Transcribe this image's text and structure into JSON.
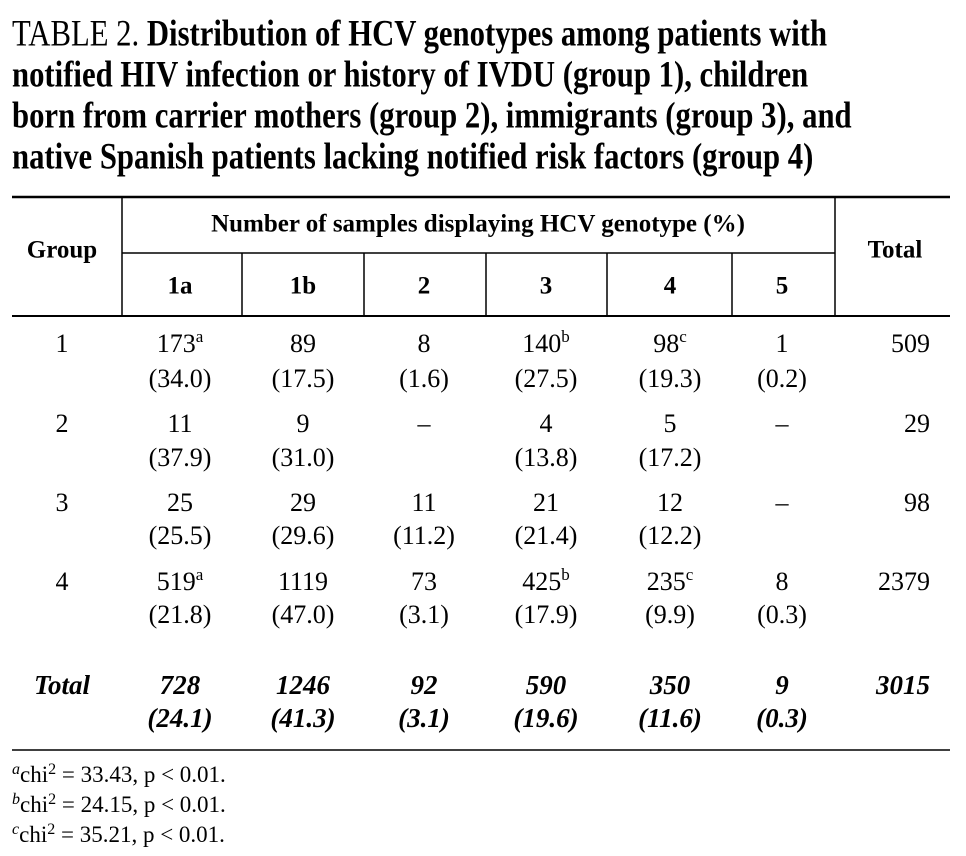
{
  "caption": {
    "label": "TABLE 2.",
    "lines": [
      "Distribution of HCV genotypes among patients with",
      "notified HIV infection or history of IVDU (group 1), children",
      "born from carrier mothers (group 2), immigrants (group 3), and",
      "native Spanish patients lacking notified risk factors (group 4)"
    ]
  },
  "table": {
    "header": {
      "group": "Group",
      "span": "Number of samples displaying HCV genotype (%)",
      "total": "Total",
      "genotypes": [
        "1a",
        "1b",
        "2",
        "3",
        "4",
        "5"
      ]
    },
    "rows": [
      {
        "group": "1",
        "cells": [
          {
            "n": "173",
            "sup": "a",
            "pct": "(34.0)"
          },
          {
            "n": "89",
            "pct": "(17.5)"
          },
          {
            "n": "8",
            "pct": "(1.6)"
          },
          {
            "n": "140",
            "sup": "b",
            "pct": "(27.5)"
          },
          {
            "n": "98",
            "sup": "c",
            "pct": "(19.3)"
          },
          {
            "n": "1",
            "pct": "(0.2)"
          }
        ],
        "total": "509"
      },
      {
        "group": "2",
        "cells": [
          {
            "n": "11",
            "pct": "(37.9)"
          },
          {
            "n": "9",
            "pct": "(31.0)"
          },
          {
            "n": "–"
          },
          {
            "n": "4",
            "pct": "(13.8)"
          },
          {
            "n": "5",
            "pct": "(17.2)"
          },
          {
            "n": "–"
          }
        ],
        "total": "29"
      },
      {
        "group": "3",
        "cells": [
          {
            "n": "25",
            "pct": "(25.5)"
          },
          {
            "n": "29",
            "pct": "(29.6)"
          },
          {
            "n": "11",
            "pct": "(11.2)"
          },
          {
            "n": "21",
            "pct": "(21.4)"
          },
          {
            "n": "12",
            "pct": "(12.2)"
          },
          {
            "n": "–"
          }
        ],
        "total": "98"
      },
      {
        "group": "4",
        "cells": [
          {
            "n": "519",
            "sup": "a",
            "pct": "(21.8)"
          },
          {
            "n": "1119",
            "pct": "(47.0)"
          },
          {
            "n": "73",
            "pct": "(3.1)"
          },
          {
            "n": "425",
            "sup": "b",
            "pct": "(17.9)"
          },
          {
            "n": "235",
            "sup": "c",
            "pct": "(9.9)"
          },
          {
            "n": "8",
            "pct": "(0.3)"
          }
        ],
        "total": "2379"
      }
    ],
    "total_row": {
      "group": "Total",
      "cells": [
        {
          "n": "728",
          "pct": "(24.1)"
        },
        {
          "n": "1246",
          "pct": "(41.3)"
        },
        {
          "n": "92",
          "pct": "(3.1)"
        },
        {
          "n": "590",
          "pct": "(19.6)"
        },
        {
          "n": "350",
          "pct": "(11.6)"
        },
        {
          "n": "9",
          "pct": "(0.3)"
        }
      ],
      "total": "3015"
    }
  },
  "footnotes": [
    {
      "mark": "a",
      "pre": "chi",
      "sup": "2",
      "post": " = 33.43, p < 0.01."
    },
    {
      "mark": "b",
      "pre": "chi",
      "sup": "2",
      "post": " = 24.15, p < 0.01."
    },
    {
      "mark": "c",
      "pre": "chi",
      "sup": "2",
      "post": " = 35.21, p < 0.01."
    }
  ]
}
